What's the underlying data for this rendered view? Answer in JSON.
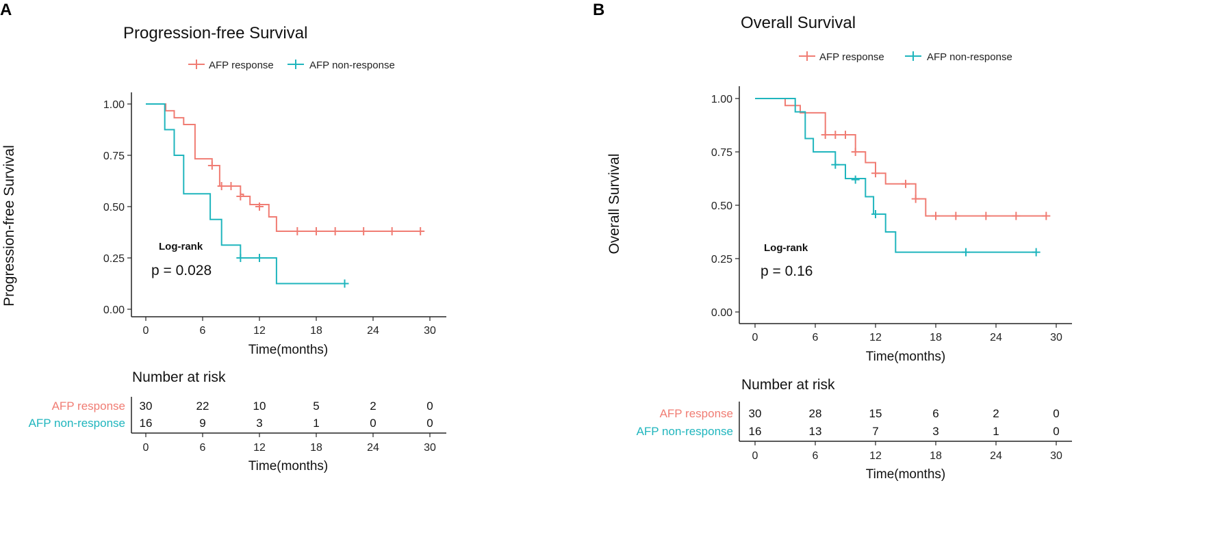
{
  "colors": {
    "response": "#f07c73",
    "nonresponse": "#1fb5bd",
    "axis": "#222222",
    "text": "#222222"
  },
  "chart_data": [
    {
      "type": "line",
      "panel_label": "A",
      "title": "Progression-free Survival",
      "xlabel": "Time(months)",
      "ylabel": "Progression-free Survival",
      "xlim": [
        0,
        30
      ],
      "ylim": [
        0,
        1
      ],
      "x_ticks": [
        "0",
        "6",
        "12",
        "18",
        "24",
        "30"
      ],
      "y_ticks": [
        "0.00",
        "0.25",
        "0.50",
        "0.75",
        "1.00"
      ],
      "legend": {
        "placement": "top",
        "entries": [
          "AFP response",
          "AFP non-response"
        ]
      },
      "annotation": {
        "test": "Log-rank",
        "p": "p = 0.028"
      },
      "series": [
        {
          "name": "AFP response",
          "steps": [
            [
              0,
              1.0
            ],
            [
              2.1,
              1.0
            ],
            [
              2.1,
              0.967
            ],
            [
              3.0,
              0.933
            ],
            [
              4.0,
              0.9
            ],
            [
              5.2,
              0.733
            ],
            [
              7.0,
              0.7
            ],
            [
              7.8,
              0.6
            ],
            [
              10.0,
              0.56
            ],
            [
              10.3,
              0.55
            ],
            [
              11.0,
              0.51
            ],
            [
              13.0,
              0.45
            ],
            [
              13.8,
              0.38
            ],
            [
              29.0,
              0.38
            ]
          ],
          "censored": [
            [
              7.0,
              0.7
            ],
            [
              8.0,
              0.6
            ],
            [
              9.0,
              0.6
            ],
            [
              10.0,
              0.55
            ],
            [
              12.0,
              0.5
            ],
            [
              16.0,
              0.38
            ],
            [
              18.0,
              0.38
            ],
            [
              20.0,
              0.38
            ],
            [
              23.0,
              0.38
            ],
            [
              26.0,
              0.38
            ],
            [
              29.0,
              0.38
            ]
          ]
        },
        {
          "name": "AFP non-response",
          "steps": [
            [
              0,
              1.0
            ],
            [
              2.0,
              1.0
            ],
            [
              2.0,
              0.875
            ],
            [
              3.0,
              0.75
            ],
            [
              4.0,
              0.5625
            ],
            [
              6.8,
              0.4375
            ],
            [
              8.0,
              0.3125
            ],
            [
              10.0,
              0.25
            ],
            [
              13.8,
              0.125
            ],
            [
              21.0,
              0.125
            ]
          ],
          "censored": [
            [
              10.0,
              0.25
            ],
            [
              12.0,
              0.25
            ],
            [
              21.0,
              0.125
            ]
          ]
        }
      ],
      "risk_table": {
        "title": "Number at risk",
        "xlabel": "Time(months)",
        "times": [
          "0",
          "6",
          "12",
          "18",
          "24",
          "30"
        ],
        "rows": [
          {
            "label": "AFP response",
            "counts": [
              "30",
              "22",
              "10",
              "5",
              "2",
              "0"
            ]
          },
          {
            "label": "AFP non-response",
            "counts": [
              "16",
              "9",
              "3",
              "1",
              "0",
              "0"
            ]
          }
        ]
      }
    },
    {
      "type": "line",
      "panel_label": "B",
      "title": "Overall Survival",
      "xlabel": "Time(months)",
      "ylabel": "Overall Survival",
      "xlim": [
        0,
        30
      ],
      "ylim": [
        0,
        1
      ],
      "x_ticks": [
        "0",
        "6",
        "12",
        "18",
        "24",
        "30"
      ],
      "y_ticks": [
        "0.00",
        "0.25",
        "0.50",
        "0.75",
        "1.00"
      ],
      "legend": {
        "placement": "top",
        "entries": [
          "AFP response",
          "AFP non-response"
        ]
      },
      "annotation": {
        "test": "Log-rank",
        "p": "p = 0.16"
      },
      "series": [
        {
          "name": "AFP response",
          "steps": [
            [
              0,
              1.0
            ],
            [
              3.0,
              1.0
            ],
            [
              3.0,
              0.967
            ],
            [
              4.5,
              0.933
            ],
            [
              7.0,
              0.83
            ],
            [
              10.0,
              0.75
            ],
            [
              11.0,
              0.7
            ],
            [
              12.0,
              0.65
            ],
            [
              13.0,
              0.6
            ],
            [
              16.0,
              0.53
            ],
            [
              17.0,
              0.45
            ],
            [
              29.0,
              0.45
            ]
          ],
          "censored": [
            [
              7.0,
              0.83
            ],
            [
              8.0,
              0.83
            ],
            [
              9.0,
              0.83
            ],
            [
              10.0,
              0.75
            ],
            [
              12.0,
              0.65
            ],
            [
              15.0,
              0.6
            ],
            [
              16.0,
              0.53
            ],
            [
              18.0,
              0.45
            ],
            [
              20.0,
              0.45
            ],
            [
              23.0,
              0.45
            ],
            [
              26.0,
              0.45
            ],
            [
              29.0,
              0.45
            ]
          ]
        },
        {
          "name": "AFP non-response",
          "steps": [
            [
              0,
              1.0
            ],
            [
              4.0,
              1.0
            ],
            [
              4.0,
              0.9375
            ],
            [
              5.0,
              0.8125
            ],
            [
              5.8,
              0.75
            ],
            [
              8.0,
              0.69
            ],
            [
              9.0,
              0.625
            ],
            [
              11.0,
              0.54
            ],
            [
              11.8,
              0.4583
            ],
            [
              13.0,
              0.375
            ],
            [
              14.0,
              0.28
            ],
            [
              28.0,
              0.28
            ]
          ],
          "censored": [
            [
              8.0,
              0.69
            ],
            [
              10.0,
              0.62
            ],
            [
              12.0,
              0.4583
            ],
            [
              21.0,
              0.28
            ],
            [
              28.0,
              0.28
            ]
          ]
        }
      ],
      "risk_table": {
        "title": "Number at risk",
        "xlabel": "Time(months)",
        "times": [
          "0",
          "6",
          "12",
          "18",
          "24",
          "30"
        ],
        "rows": [
          {
            "label": "AFP response",
            "counts": [
              "30",
              "28",
              "15",
              "6",
              "2",
              "0"
            ]
          },
          {
            "label": "AFP non-response",
            "counts": [
              "16",
              "13",
              "7",
              "3",
              "1",
              "0"
            ]
          }
        ]
      }
    }
  ]
}
